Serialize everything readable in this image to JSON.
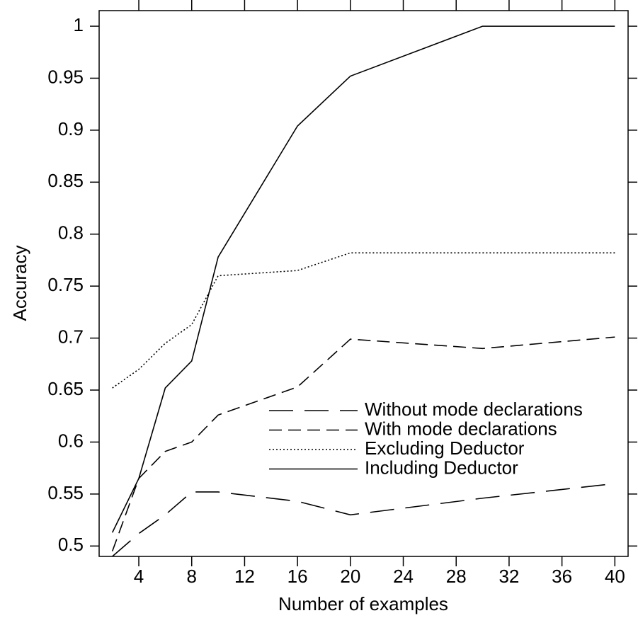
{
  "chart_data": {
    "type": "line",
    "x_label": "Number of examples",
    "y_label": "Accuracy",
    "x": [
      2,
      4,
      6,
      8,
      10,
      16,
      20,
      30,
      40
    ],
    "series": [
      {
        "name": "Without mode declarations",
        "color": "#000000",
        "dash": "long-dash",
        "values": [
          0.49,
          0.512,
          0.53,
          0.552,
          0.552,
          0.543,
          0.53,
          0.546,
          0.56
        ]
      },
      {
        "name": "With mode declarations",
        "color": "#000000",
        "dash": "dash",
        "values": [
          0.495,
          0.565,
          0.591,
          0.6,
          0.626,
          0.653,
          0.699,
          0.69,
          0.701
        ]
      },
      {
        "name": "Excluding Deductor",
        "color": "#000000",
        "dash": "dot",
        "values": [
          0.652,
          0.67,
          0.695,
          0.713,
          0.76,
          0.765,
          0.782,
          0.782,
          0.782
        ]
      },
      {
        "name": "Including Deductor",
        "color": "#000000",
        "dash": "solid",
        "values": [
          0.513,
          0.565,
          0.652,
          0.678,
          0.778,
          0.904,
          0.952,
          1.0,
          1.0
        ]
      }
    ],
    "xlim": [
      1,
      41
    ],
    "xticks": [
      4,
      8,
      12,
      16,
      20,
      24,
      28,
      32,
      36,
      40
    ],
    "ylim": [
      0.49,
      1.015
    ],
    "yticks": [
      0.5,
      0.55,
      0.6,
      0.65,
      0.7,
      0.75,
      0.8,
      0.85,
      0.9,
      0.95,
      1
    ],
    "legend": "lower right",
    "grid": false
  }
}
